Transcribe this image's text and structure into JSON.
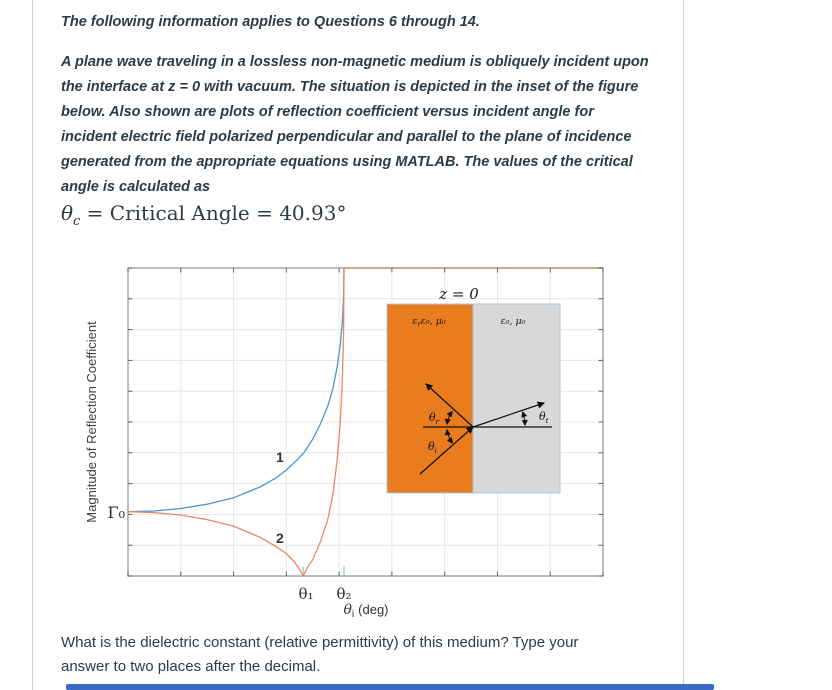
{
  "page": {
    "heading": "The following information applies to Questions 6 through 14.",
    "paragraph_lines": [
      "A plane wave traveling in a lossless non-magnetic medium is obliquely incident upon",
      "the interface at z = 0 with vacuum.  The situation is depicted in the inset of the figure",
      "below.  Also shown are plots of reflection coefficient versus incident angle for",
      "incident electric field polarized perpendicular and parallel to the plane of incidence",
      "generated from the appropriate equations using MATLAB.  The values of the critical",
      "angle is calculated as"
    ],
    "formula": {
      "theta": "θ",
      "sub": "c",
      "rest": " = Critical Angle = 40.93°"
    },
    "question_lines": [
      "What is the dielectric constant (relative permittivity) of this medium?  Type your",
      "answer to two places after the decimal."
    ]
  },
  "figure": {
    "ylabel": "Magnitude of Reflection Coefficient",
    "gamma0": "Γ₀",
    "curve1": "1",
    "curve2": "2",
    "xtick1": "θ₁",
    "xtick2": "θ₂",
    "xlabel_theta": "θ",
    "xlabel_sub": "i",
    "xlabel_rest": "(deg)",
    "inset": {
      "title": "z = 0",
      "medium1_eps": "ε",
      "medium1_eps_sub": "r",
      "medium1_rest": "ε₀, μ₀",
      "medium2": "ε₀, μ₀",
      "angle_r_theta": "θ",
      "angle_r_sub": "r",
      "angle_i_theta": "θ",
      "angle_i_sub": "i",
      "angle_t_theta": "θ",
      "angle_t_sub": "t"
    }
  },
  "colors": {
    "text": "#2d3b45",
    "card_border": "#c9ced3",
    "answer_bar_accent": "#3a6ac6",
    "inset_medium1_fill": "#e87c1e",
    "inset_medium2_fill": "#d8d8d8",
    "inset_border": "#a9c3e2",
    "curve1_label": "#3080c8",
    "curve2_label": "#ce2b20"
  },
  "chart_data": {
    "type": "line",
    "title": "",
    "xlabel": "θi (deg)",
    "ylabel": "Magnitude of Reflection Coefficient",
    "xlim": [
      0,
      90
    ],
    "ylim": [
      0,
      1
    ],
    "x_tick_step": 10,
    "y_tick_step": 0.1,
    "grid": true,
    "annotations": {
      "gamma0_value": 0.21,
      "theta1_deg": 33.2,
      "theta2_deg": 40.93,
      "critical_angle_deg": 40.93
    },
    "colors": {
      "grid": "#e7e7e7",
      "tick": "#5f5f5f",
      "angle_marker": "#a9c6e8"
    },
    "series": [
      {
        "name": "1 (perpendicular polarization)",
        "color": "#4e94d0",
        "x": [
          0,
          5,
          10,
          15,
          20,
          25,
          28,
          30,
          32,
          33.5,
          35,
          36.5,
          37.8,
          38.8,
          39.6,
          40.2,
          40.6,
          40.85,
          40.93,
          41,
          90
        ],
        "y": [
          0.209,
          0.211,
          0.219,
          0.233,
          0.254,
          0.289,
          0.318,
          0.344,
          0.376,
          0.404,
          0.444,
          0.495,
          0.549,
          0.607,
          0.676,
          0.748,
          0.822,
          0.905,
          1,
          1,
          1
        ]
      },
      {
        "name": "2 (parallel polarization)",
        "color": "#e58963",
        "x": [
          0,
          5,
          10,
          15,
          20,
          25,
          28,
          30,
          31.5,
          32.5,
          33.2,
          34,
          35,
          36.5,
          37.8,
          38.8,
          39.6,
          40.2,
          40.6,
          40.85,
          40.93,
          41,
          90
        ],
        "y": [
          0.209,
          0.206,
          0.198,
          0.183,
          0.162,
          0.126,
          0.096,
          0.073,
          0.046,
          0.022,
          0,
          0.028,
          0.053,
          0.113,
          0.18,
          0.262,
          0.372,
          0.496,
          0.63,
          0.792,
          1,
          1,
          1
        ]
      }
    ]
  }
}
